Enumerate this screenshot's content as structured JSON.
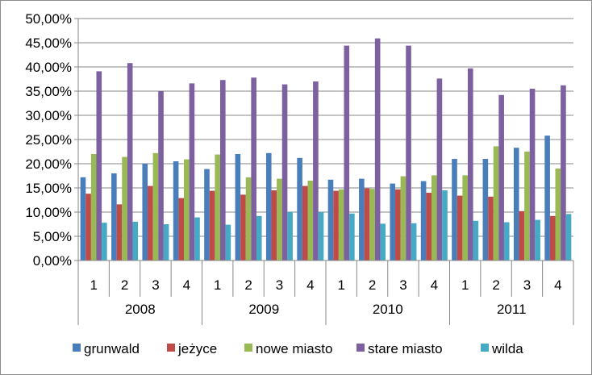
{
  "chart_data": {
    "type": "bar",
    "title": "",
    "xlabel": "",
    "ylabel": "",
    "ylim": [
      0,
      50
    ],
    "y_tick_step": 5,
    "y_ticks": [
      "0,00%",
      "5,00%",
      "10,00%",
      "15,00%",
      "20,00%",
      "25,00%",
      "30,00%",
      "35,00%",
      "40,00%",
      "45,00%",
      "50,00%"
    ],
    "grid": "horizontal",
    "legend_position": "bottom",
    "categories": [
      "1",
      "2",
      "3",
      "4",
      "1",
      "2",
      "3",
      "4",
      "1",
      "2",
      "3",
      "4",
      "1",
      "2",
      "3",
      "4"
    ],
    "groups": [
      "2008",
      "2009",
      "2010",
      "2011"
    ],
    "series": [
      {
        "name": "grunwald",
        "color": "#4a7ebb",
        "values": [
          17.2,
          18.0,
          20.0,
          20.5,
          18.9,
          22.0,
          22.2,
          21.2,
          16.7,
          16.9,
          15.9,
          16.4,
          21.0,
          21.0,
          23.3,
          25.8
        ]
      },
      {
        "name": "jeżyce",
        "color": "#be4b48",
        "values": [
          13.8,
          11.6,
          15.4,
          12.9,
          14.4,
          13.6,
          14.5,
          15.4,
          14.4,
          14.9,
          14.7,
          14.0,
          13.4,
          13.2,
          10.2,
          9.2
        ]
      },
      {
        "name": "nowe miasto",
        "color": "#98b954",
        "values": [
          22.0,
          21.4,
          22.2,
          20.9,
          21.9,
          17.2,
          16.9,
          16.5,
          14.7,
          14.8,
          17.4,
          17.6,
          17.6,
          23.6,
          22.5,
          19.0
        ]
      },
      {
        "name": "stare miasto",
        "color": "#7d60a0",
        "values": [
          39.1,
          40.8,
          35.0,
          36.6,
          37.3,
          37.8,
          36.4,
          37.0,
          44.4,
          45.9,
          44.4,
          37.6,
          39.7,
          34.2,
          35.5,
          36.2
        ]
      },
      {
        "name": "wilda",
        "color": "#46aac5",
        "values": [
          7.8,
          8.0,
          7.5,
          8.9,
          7.4,
          9.2,
          10.0,
          10.0,
          9.7,
          7.6,
          7.7,
          14.5,
          8.2,
          7.9,
          8.4,
          9.6
        ]
      }
    ]
  }
}
